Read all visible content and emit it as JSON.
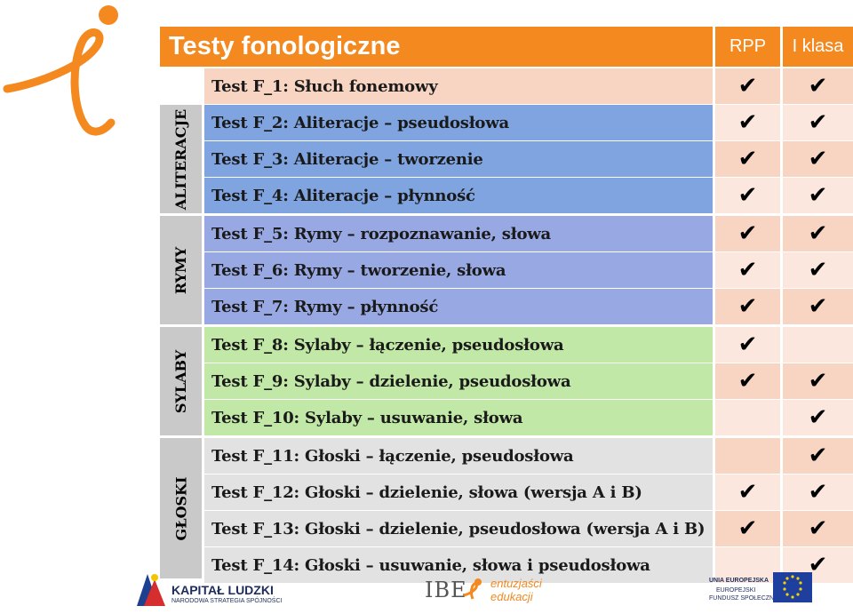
{
  "header": {
    "title": "Testy fonologiczne",
    "col1": "RPP",
    "col2": "I klasa"
  },
  "groups": [
    {
      "label": "ALITERACJE"
    },
    {
      "label": "RYMY"
    },
    {
      "label": "SYLABY"
    },
    {
      "label": "GŁOSKI"
    }
  ],
  "rows": [
    {
      "name": "Test F_1: Słuch fonemowy",
      "rpp": "✔",
      "klasa": "✔"
    },
    {
      "name": "Test F_2: Aliteracje – pseudosłowa",
      "rpp": "✔",
      "klasa": "✔"
    },
    {
      "name": "Test F_3: Aliteracje – tworzenie",
      "rpp": "✔",
      "klasa": "✔"
    },
    {
      "name": "Test F_4: Aliteracje – płynność",
      "rpp": "✔",
      "klasa": "✔"
    },
    {
      "name": "Test F_5: Rymy – rozpoznawanie, słowa",
      "rpp": "✔",
      "klasa": "✔"
    },
    {
      "name": "Test F_6: Rymy – tworzenie, słowa",
      "rpp": "✔",
      "klasa": "✔"
    },
    {
      "name": "Test F_7: Rymy – płynność",
      "rpp": "✔",
      "klasa": "✔"
    },
    {
      "name": "Test F_8: Sylaby – łączenie, pseudosłowa",
      "rpp": "✔",
      "klasa": ""
    },
    {
      "name": "Test F_9: Sylaby – dzielenie, pseudosłowa",
      "rpp": "✔",
      "klasa": "✔"
    },
    {
      "name": "Test F_10: Sylaby – usuwanie, słowa",
      "rpp": "",
      "klasa": "✔"
    },
    {
      "name": "Test F_11: Głoski – łączenie, pseudosłowa",
      "rpp": "",
      "klasa": "✔"
    },
    {
      "name": "Test F_12: Głoski – dzielenie, słowa (wersja A i B)",
      "rpp": "✔",
      "klasa": "✔"
    },
    {
      "name": "Test F_13: Głoski – dzielenie, pseudosłowa (wersja A i B)",
      "rpp": "✔",
      "klasa": "✔"
    },
    {
      "name": "Test F_14: Głoski – usuwanie, słowa i pseudosłowa",
      "rpp": "",
      "klasa": "✔"
    }
  ],
  "colors": {
    "orange": "#f3891f",
    "peach": "#f8d5c3",
    "peach_light": "#fbe7dd",
    "blue": "#7fa4e0",
    "purple": "#98a8e3",
    "green": "#c1e8a6",
    "grey": "#e2e2e2",
    "group_grey": "#c9c9c9"
  },
  "footer": {
    "kapital": "KAPITAŁ LUDZKI",
    "kapital_sub": "NARODOWA STRATEGIA SPÓJNOŚCI",
    "ibe": "IBE",
    "entuzjasci_1": "entuzjaści",
    "entuzjasci_2": "edukacji",
    "ue_1": "UNIA EUROPEJSKA",
    "ue_2": "EUROPEJSKI",
    "ue_3": "FUNDUSZ SPOŁECZNY"
  }
}
